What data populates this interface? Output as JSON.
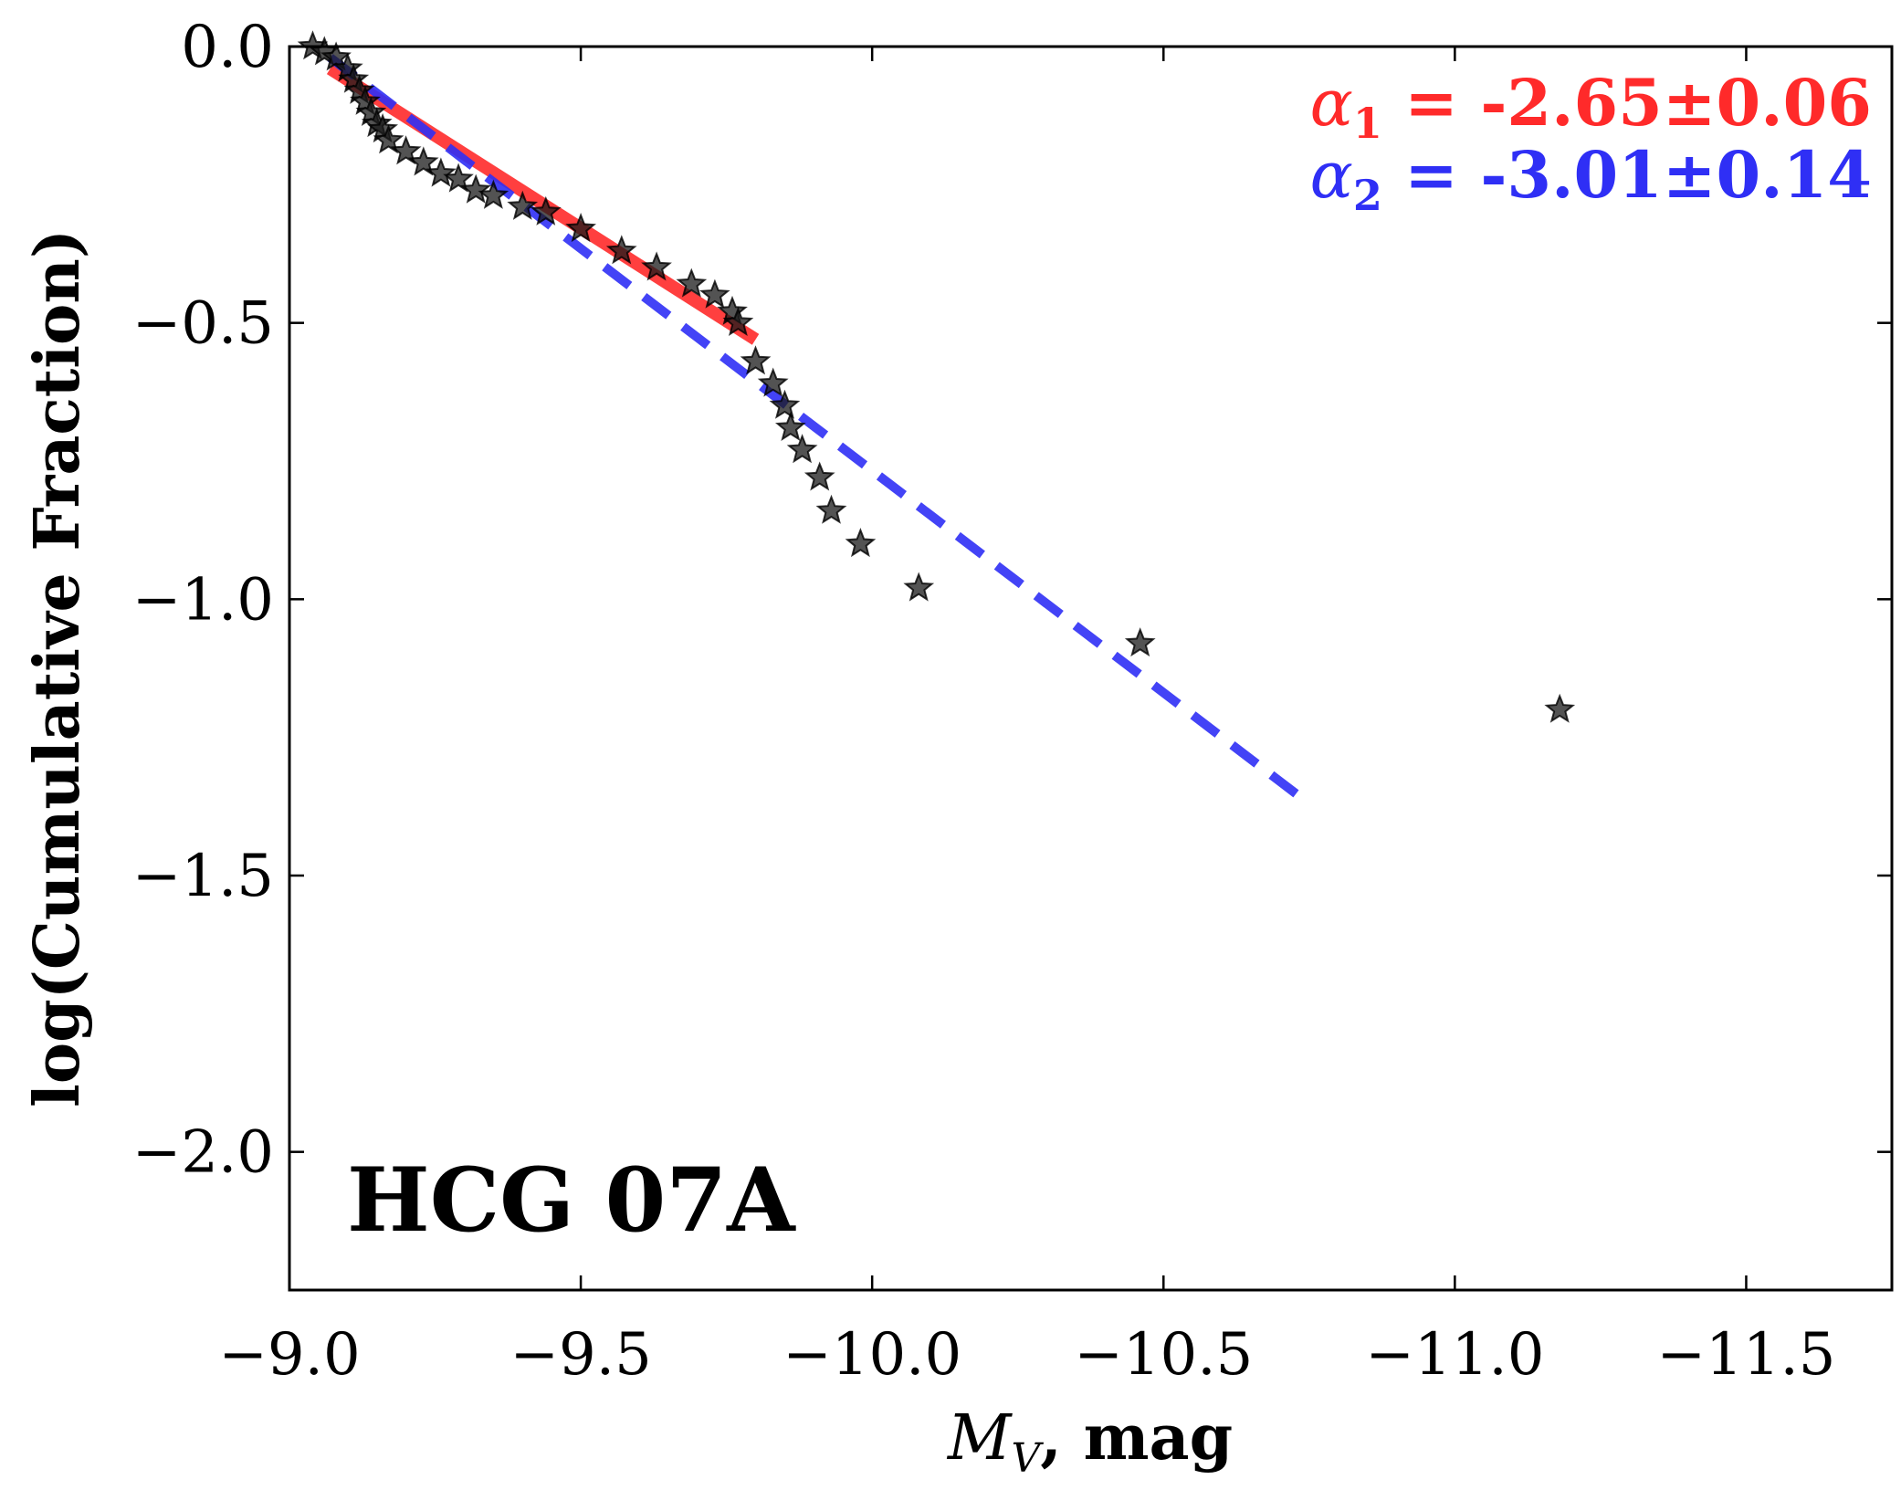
{
  "chart_data": {
    "type": "scatter",
    "xlabel_var": "M",
    "xlabel_sub": "V",
    "xlabel_unit": ", mag",
    "ylabel": "log(Cumulative Fraction)",
    "xlim": [
      -9.0,
      -11.75
    ],
    "ylim": [
      -2.25,
      0.0
    ],
    "xticks": [
      -9.0,
      -9.5,
      -10.0,
      -10.5,
      -11.0,
      -11.5
    ],
    "xtick_labels": [
      "−9.0",
      "−9.5",
      "−10.0",
      "−10.5",
      "−11.0",
      "−11.5"
    ],
    "yticks": [
      0.0,
      -0.5,
      -1.0,
      -1.5,
      -2.0
    ],
    "ytick_labels": [
      "0.0",
      "−0.5",
      "−1.0",
      "−1.5",
      "−2.0"
    ],
    "label": "HCG 07A",
    "series": [
      {
        "name": "cumulative fraction",
        "marker": "star",
        "color": "#000000",
        "x": [
          -9.04,
          -9.06,
          -9.08,
          -9.1,
          -9.11,
          -9.12,
          -9.13,
          -9.14,
          -9.15,
          -9.16,
          -9.17,
          -9.2,
          -9.23,
          -9.26,
          -9.29,
          -9.32,
          -9.35,
          -9.4,
          -9.44,
          -9.5,
          -9.57,
          -9.63,
          -9.69,
          -9.73,
          -9.76,
          -9.77,
          -9.8,
          -9.83,
          -9.85,
          -9.86,
          -9.88,
          -9.91,
          -9.93,
          -9.98,
          -10.08,
          -10.46,
          -11.18
        ],
        "y": [
          0.0,
          -0.01,
          -0.02,
          -0.04,
          -0.06,
          -0.08,
          -0.1,
          -0.12,
          -0.14,
          -0.15,
          -0.17,
          -0.19,
          -0.21,
          -0.23,
          -0.24,
          -0.26,
          -0.27,
          -0.29,
          -0.3,
          -0.33,
          -0.37,
          -0.4,
          -0.43,
          -0.45,
          -0.48,
          -0.5,
          -0.57,
          -0.61,
          -0.65,
          -0.69,
          -0.73,
          -0.78,
          -0.84,
          -0.9,
          -0.98,
          -1.08,
          -1.2
        ]
      }
    ],
    "fits": [
      {
        "name": "alpha1",
        "style": "solid",
        "color": "#ff2a2a",
        "x": [
          -9.07,
          -9.8
        ],
        "y": [
          -0.04,
          -0.53
        ],
        "symbol": "α",
        "sub": "1",
        "text": " = -2.65±0.06"
      },
      {
        "name": "alpha2",
        "style": "dashed",
        "color": "#2f2ff5",
        "x": [
          -9.07,
          -10.75
        ],
        "y": [
          -0.02,
          -1.37
        ],
        "symbol": "α",
        "sub": "2",
        "text": " = -3.01±0.14"
      }
    ]
  }
}
